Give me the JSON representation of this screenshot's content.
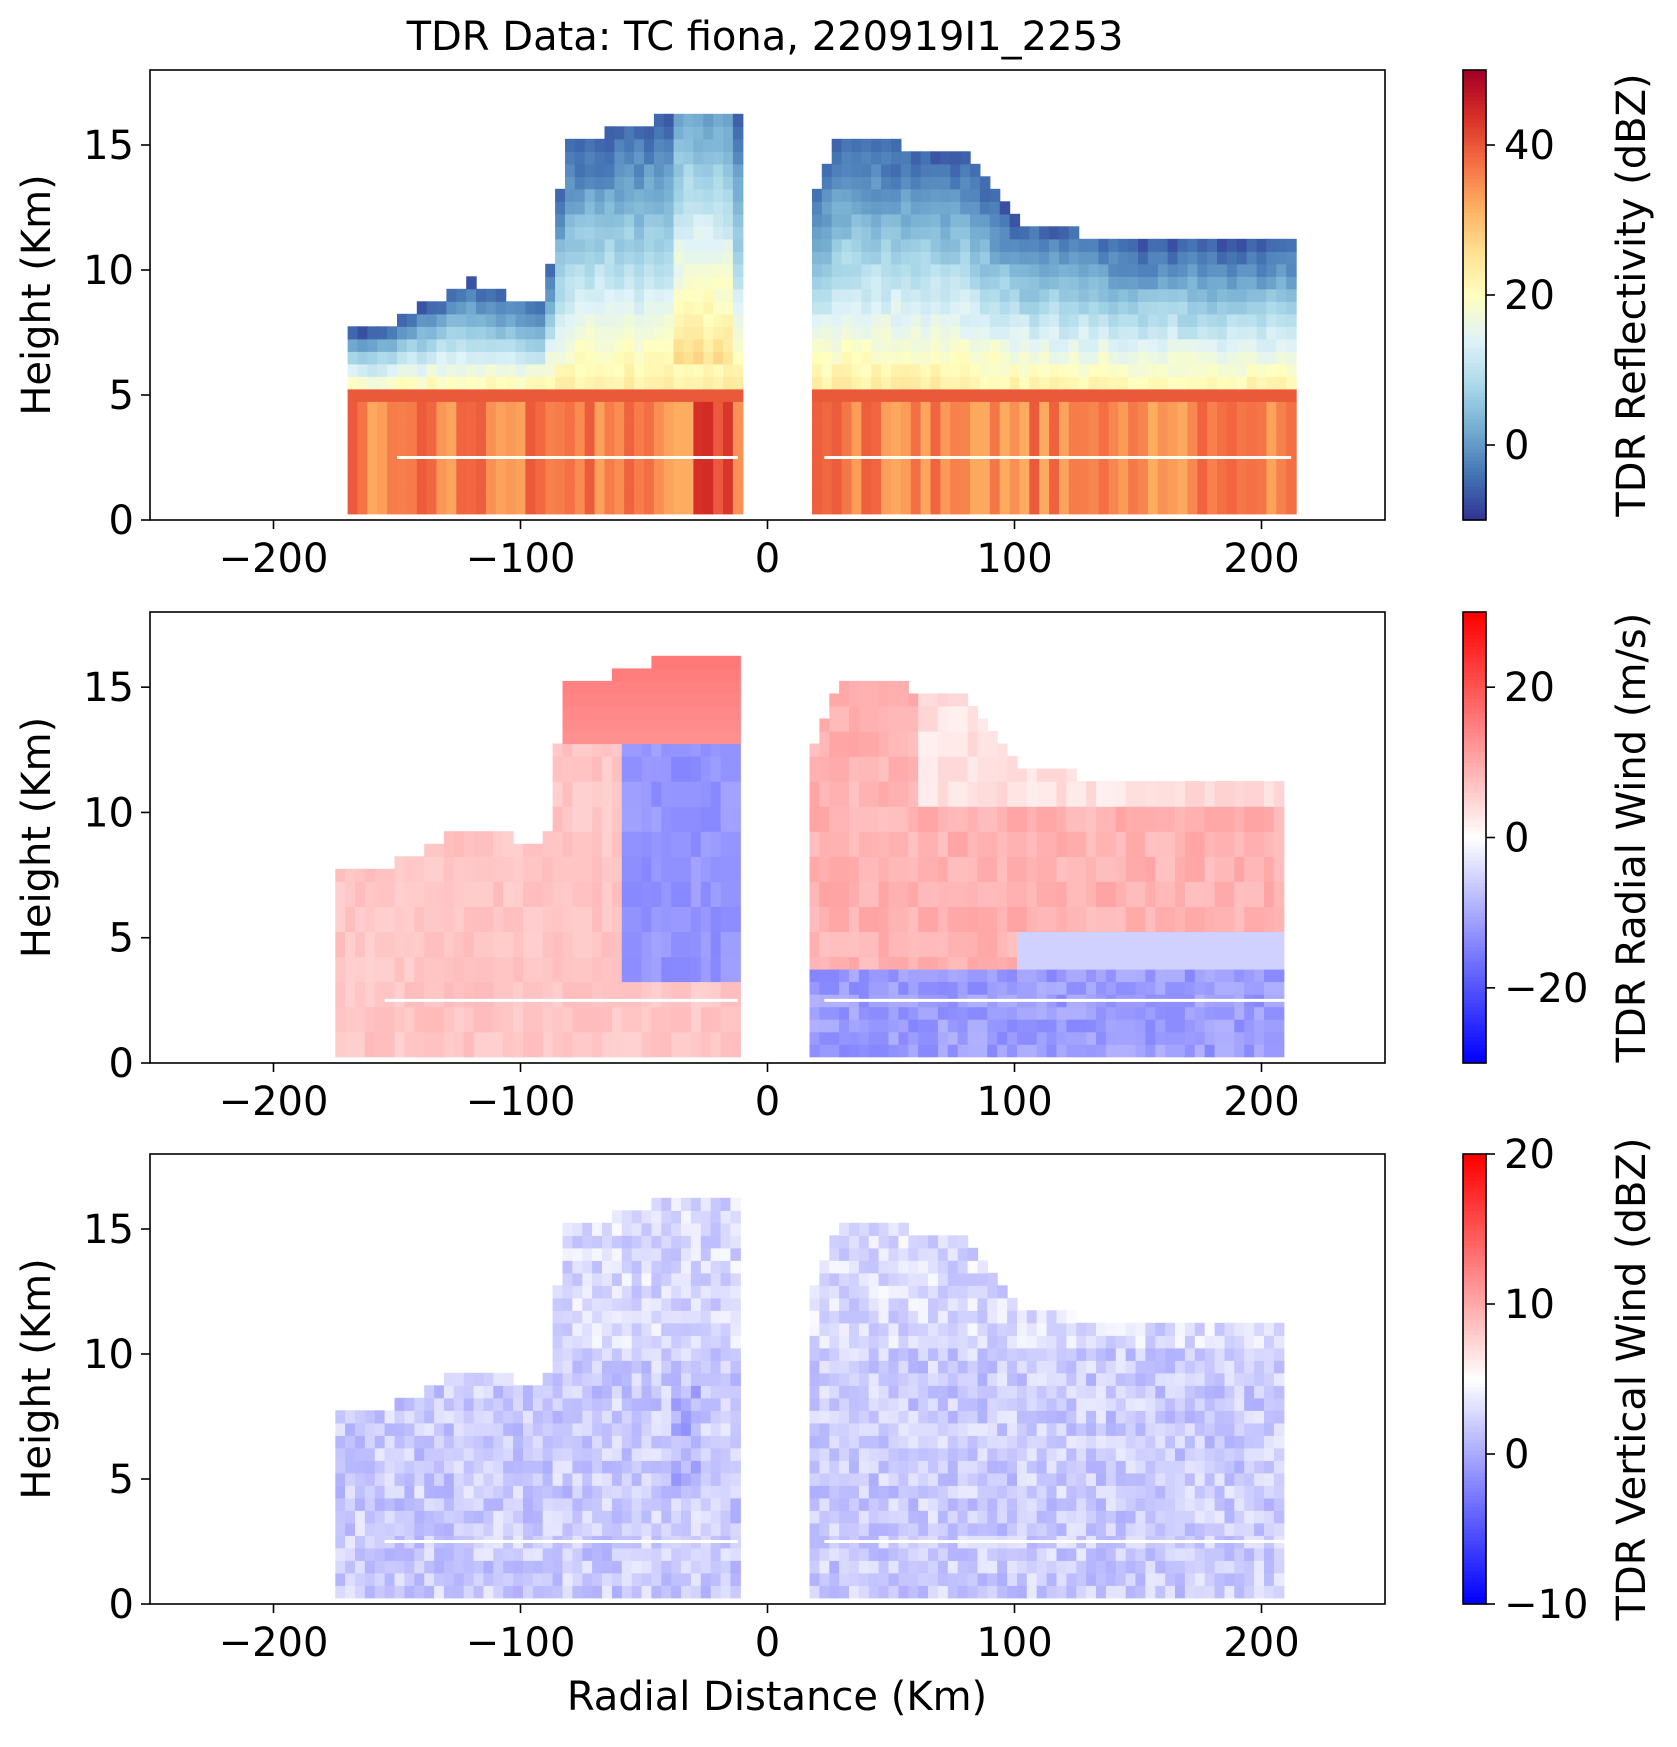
{
  "title": "TDR Data: TC fiona, 220919I1_2253",
  "shared_xlabel": "Radial Distance (Km)",
  "colors": {
    "background": "#ffffff",
    "axis": "#000000",
    "rdylbu_r": [
      "#313695",
      "#4575b4",
      "#74add1",
      "#abd9e9",
      "#e0f3f8",
      "#ffffbf",
      "#fee090",
      "#fdae61",
      "#f46d43",
      "#d73027",
      "#a50026"
    ],
    "bwr": [
      "#0000ff",
      "#ffffff",
      "#ff0000"
    ]
  },
  "chart_data": [
    {
      "type": "heatmap",
      "panel": "top",
      "title": "TDR Data: TC fiona, 220919I1_2253",
      "xlabel": "",
      "ylabel": "Height (Km)",
      "xlim": [
        -250,
        250
      ],
      "ylim": [
        0,
        18
      ],
      "xticks": [
        -200,
        -100,
        0,
        100,
        200
      ],
      "yticks": [
        0,
        5,
        10,
        15
      ],
      "colorbar": {
        "label": "TDR Reflectivity (dBZ)",
        "vmin": -10,
        "vmax": 50,
        "ticks": [
          0,
          20,
          40
        ],
        "tick_labels": [
          "0",
          "20",
          "40"
        ],
        "cmap": "rdylbu_r"
      },
      "variable": "reflectivity",
      "coverage_x": [
        -170,
        212
      ],
      "gap_x": [
        -12,
        18
      ],
      "echo_top_left": [
        [
          -160,
          7.5
        ],
        [
          -120,
          9.5
        ],
        [
          -90,
          8.5
        ],
        [
          -82,
          15
        ],
        [
          -30,
          16.5
        ],
        [
          -12,
          16
        ]
      ],
      "echo_top_right": [
        [
          18,
          12.5
        ],
        [
          30,
          15.5
        ],
        [
          80,
          14.5
        ],
        [
          100,
          12
        ],
        [
          150,
          11
        ],
        [
          210,
          11
        ]
      ],
      "melting_level_km": 4.8,
      "value_range_dbz": [
        -8,
        45
      ]
    },
    {
      "type": "heatmap",
      "panel": "middle",
      "xlabel": "",
      "ylabel": "Height (Km)",
      "xlim": [
        -250,
        250
      ],
      "ylim": [
        0,
        18
      ],
      "xticks": [
        -200,
        -100,
        0,
        100,
        200
      ],
      "yticks": [
        0,
        5,
        10,
        15
      ],
      "colorbar": {
        "label": "TDR Radial Wind (m/s)",
        "vmin": -30,
        "vmax": 30,
        "ticks": [
          -20,
          0,
          20
        ],
        "tick_labels": [
          "−20",
          "0",
          "20"
        ],
        "cmap": "bwr"
      },
      "variable": "radial_wind",
      "coverage_x": [
        -175,
        210
      ],
      "gap_x": [
        -12,
        18
      ],
      "value_range_ms": [
        -22,
        20
      ]
    },
    {
      "type": "heatmap",
      "panel": "bottom",
      "xlabel": "Radial Distance (Km)",
      "ylabel": "Height (Km)",
      "xlim": [
        -250,
        250
      ],
      "ylim": [
        0,
        18
      ],
      "xticks": [
        -200,
        -100,
        0,
        100,
        200
      ],
      "yticks": [
        0,
        5,
        10,
        15
      ],
      "colorbar": {
        "label": "TDR Vertical Wind (dBZ)",
        "vmin": -10,
        "vmax": 20,
        "ticks": [
          -10,
          0,
          10,
          20
        ],
        "tick_labels": [
          "−10",
          "0",
          "10",
          "20"
        ],
        "cmap": "bwr"
      },
      "variable": "vertical_wind",
      "coverage_x": [
        -175,
        210
      ],
      "gap_x": [
        -12,
        18
      ],
      "value_range": [
        -5,
        5
      ]
    }
  ]
}
